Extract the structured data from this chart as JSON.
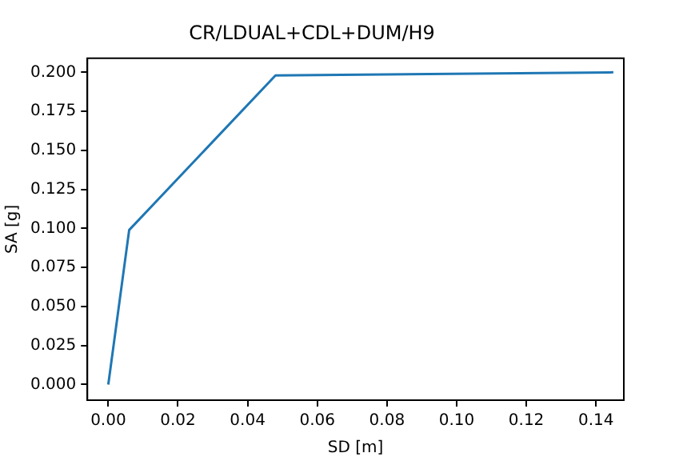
{
  "chart_data": {
    "type": "line",
    "title": "CR/LDUAL+CDL+DUM/H9",
    "xlabel": "SD [m]",
    "ylabel": "SA [g]",
    "x": [
      0,
      0.006,
      0.048,
      0.145
    ],
    "series": [
      {
        "color": "#1f77b4",
        "values": [
          0,
          0.099,
          0.198,
          0.2
        ]
      }
    ],
    "xlim": [
      -0.006,
      0.148
    ],
    "ylim": [
      -0.01,
      0.209
    ],
    "xticks": [
      {
        "value": 0,
        "label": "0.00"
      },
      {
        "value": 0.02,
        "label": "0.02"
      },
      {
        "value": 0.04,
        "label": "0.04"
      },
      {
        "value": 0.06,
        "label": "0.06"
      },
      {
        "value": 0.08,
        "label": "0.08"
      },
      {
        "value": 0.1,
        "label": "0.10"
      },
      {
        "value": 0.12,
        "label": "0.12"
      },
      {
        "value": 0.14,
        "label": "0.14"
      }
    ],
    "yticks": [
      {
        "value": 0,
        "label": "0.000"
      },
      {
        "value": 0.025,
        "label": "0.025"
      },
      {
        "value": 0.05,
        "label": "0.050"
      },
      {
        "value": 0.075,
        "label": "0.075"
      },
      {
        "value": 0.1,
        "label": "0.100"
      },
      {
        "value": 0.125,
        "label": "0.125"
      },
      {
        "value": 0.15,
        "label": "0.150"
      },
      {
        "value": 0.175,
        "label": "0.175"
      },
      {
        "value": 0.2,
        "label": "0.200"
      }
    ],
    "grid": false,
    "legend": false,
    "marker": "none",
    "line_style": "solid"
  }
}
